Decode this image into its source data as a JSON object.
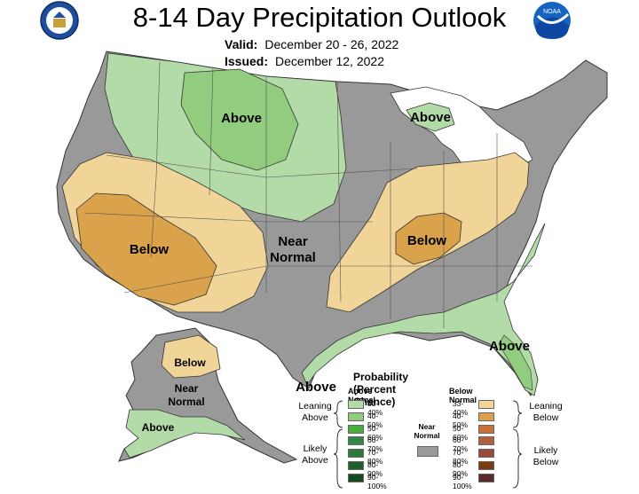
{
  "title": "8-14 Day Precipitation Outlook",
  "valid_label": "Valid:",
  "valid_value": "December 20 - 26, 2022",
  "issued_label": "Issued:",
  "issued_value": "December 12, 2022",
  "logos": {
    "left": "doc-seal",
    "right": "noaa-logo",
    "noaa_text": "NOAA"
  },
  "map_labels": {
    "above_north": "Above",
    "above_lakes": "Above",
    "below_sw": "Below",
    "near_normal": "Near Normal",
    "below_ohio": "Below",
    "above_se": "Above",
    "above_tx": "Above",
    "below_ak": "Below",
    "near_normal_ak": "Near Normal",
    "above_ak": "Above"
  },
  "legend": {
    "title": "Probability (Percent Chance)",
    "above_header": "Above Normal",
    "below_header": "Below Normal",
    "near_normal": "Near Normal",
    "leaning_above": "Leaning Above",
    "likely_above": "Likely Above",
    "leaning_below": "Leaning Below",
    "likely_below": "Likely Below",
    "above_ranges": [
      "33-40%",
      "40-50%",
      "50-60%",
      "60-70%",
      "70-80%",
      "80-90%",
      "90-100%"
    ],
    "below_ranges": [
      "33-40%",
      "40-50%",
      "50-60%",
      "60-70%",
      "70-80%",
      "80-90%",
      "90-100%"
    ],
    "above_colors": [
      "#b3dba8",
      "#92cc7e",
      "#4aad3f",
      "#2f8a4a",
      "#2a7a3a",
      "#1f5f2a",
      "#174a1f"
    ],
    "below_colors": [
      "#f1d598",
      "#d9a24b",
      "#c9713a",
      "#b0603a",
      "#9a4a3a",
      "#7a3a12",
      "#5a2a2a"
    ],
    "near_color": "#999999"
  },
  "colors": {
    "near_normal": "#999999",
    "above_lean": "#b3dba8",
    "above_40": "#92cc7e",
    "below_lean": "#f1d598",
    "below_40": "#d9a24b",
    "water": "#ffffff",
    "border": "#333333"
  }
}
